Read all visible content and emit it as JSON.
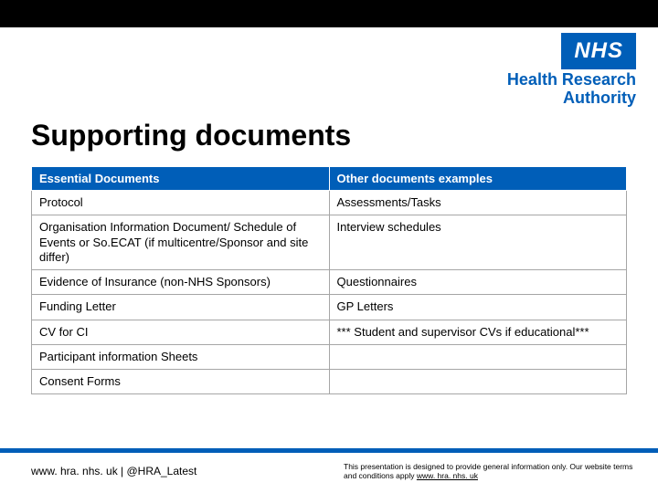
{
  "logo": {
    "badge": "NHS",
    "line1": "Health Research",
    "line2": "Authority",
    "badge_bg": "#005eb8",
    "badge_fg": "#ffffff",
    "text_color": "#005eb8"
  },
  "title": "Supporting documents",
  "table": {
    "headers": [
      "Essential Documents",
      "Other documents examples"
    ],
    "header_bg": "#005eb8",
    "header_fg": "#ffffff",
    "cell_bg": "#ffffff",
    "border_color": "#a6a6a6",
    "rows": [
      [
        "Protocol",
        "Assessments/Tasks"
      ],
      [
        "Organisation Information Document/ Schedule of Events or So.ECAT (if multicentre/Sponsor and site differ)",
        "Interview schedules"
      ],
      [
        "Evidence of Insurance (non-NHS Sponsors)",
        "Questionnaires"
      ],
      [
        "Funding Letter",
        "GP Letters"
      ],
      [
        "CV for CI",
        "*** Student and supervisor CVs if educational***"
      ],
      [
        "Participant information Sheets",
        ""
      ],
      [
        "Consent Forms",
        ""
      ]
    ]
  },
  "footer": {
    "left": "www. hra. nhs. uk | @HRA_Latest",
    "right_text": "This presentation is designed to provide general information only. Our website terms and conditions apply ",
    "right_link": "www. hra. nhs. uk",
    "line_color": "#005eb8"
  }
}
